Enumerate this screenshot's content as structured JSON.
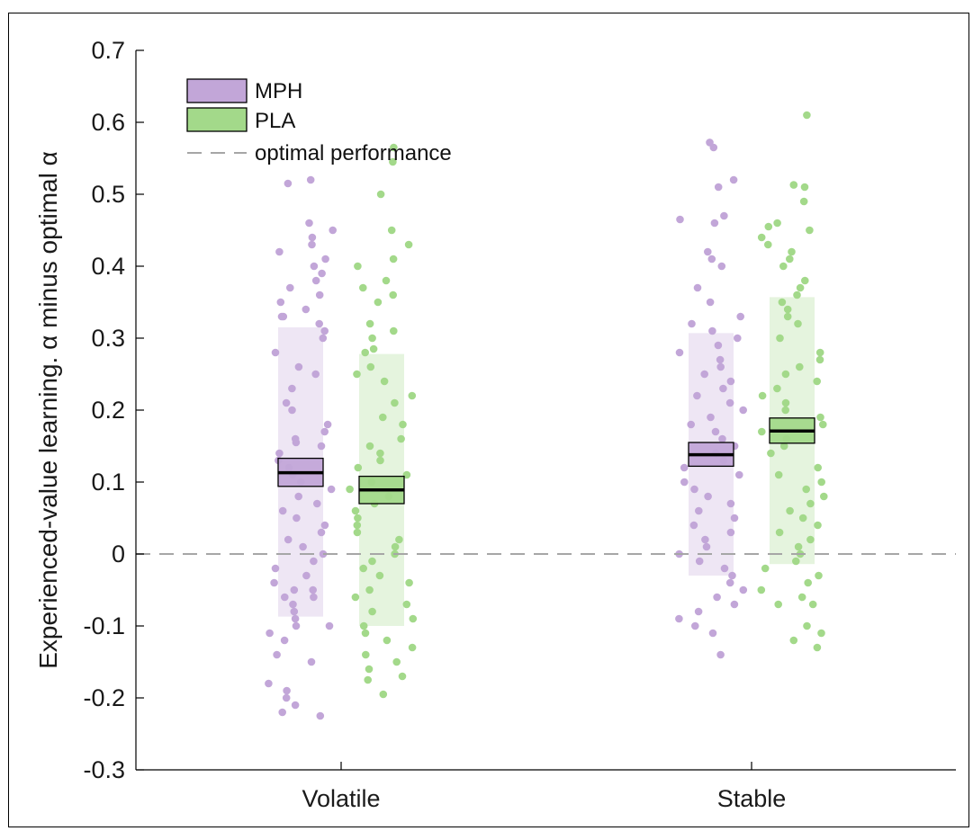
{
  "chart_data": {
    "type": "scatter",
    "subtype": "jittered strip plot with mean and standard-error boxes",
    "ylabel": "Experienced-value learning. α minus optimal α",
    "ylim": [
      -0.3,
      0.7
    ],
    "yticks": [
      "-0.3",
      "-0.2",
      "-0.1",
      "0",
      "0.1",
      "0.2",
      "0.3",
      "0.4",
      "0.5",
      "0.6",
      "0.7"
    ],
    "categories": [
      "Volatile",
      "Stable"
    ],
    "grid": false,
    "legend_position": "top-left",
    "reference_line": {
      "label": "optimal performance",
      "y": 0,
      "style": "dashed",
      "color": "#a6a6a6"
    },
    "series": [
      {
        "name": "MPH",
        "color": "#c2a6d8",
        "groups": [
          {
            "category": "Volatile",
            "mean": 0.113,
            "sem_low": 0.094,
            "sem_high": 0.133,
            "sd_low": -0.087,
            "sd_high": 0.315,
            "points": [
              0.52,
              0.515,
              0.46,
              0.45,
              0.44,
              0.43,
              0.42,
              0.41,
              0.4,
              0.39,
              0.38,
              0.37,
              0.36,
              0.35,
              0.34,
              0.33,
              0.33,
              0.32,
              0.31,
              0.3,
              0.28,
              0.26,
              0.25,
              0.23,
              0.21,
              0.2,
              0.18,
              0.17,
              0.16,
              0.155,
              0.15,
              0.14,
              0.13,
              0.12,
              0.11,
              0.1,
              0.09,
              0.08,
              0.07,
              0.06,
              0.05,
              0.04,
              0.03,
              0.02,
              0.01,
              0.0,
              -0.01,
              -0.02,
              -0.03,
              -0.04,
              -0.05,
              -0.05,
              -0.06,
              -0.06,
              -0.07,
              -0.08,
              -0.09,
              -0.1,
              -0.1,
              -0.11,
              -0.12,
              -0.14,
              -0.15,
              -0.18,
              -0.19,
              -0.2,
              -0.21,
              -0.22,
              -0.225
            ]
          },
          {
            "category": "Stable",
            "mean": 0.138,
            "sem_low": 0.122,
            "sem_high": 0.155,
            "sd_low": -0.03,
            "sd_high": 0.307,
            "points": [
              0.572,
              0.565,
              0.52,
              0.51,
              0.47,
              0.465,
              0.46,
              0.42,
              0.41,
              0.4,
              0.37,
              0.35,
              0.33,
              0.32,
              0.31,
              0.3,
              0.29,
              0.28,
              0.27,
              0.26,
              0.25,
              0.24,
              0.23,
              0.22,
              0.21,
              0.2,
              0.19,
              0.18,
              0.17,
              0.16,
              0.15,
              0.14,
              0.13,
              0.12,
              0.11,
              0.1,
              0.09,
              0.08,
              0.07,
              0.06,
              0.05,
              0.04,
              0.03,
              0.02,
              0.01,
              0.0,
              -0.01,
              -0.02,
              -0.03,
              -0.04,
              -0.05,
              -0.06,
              -0.07,
              -0.08,
              -0.09,
              -0.1,
              -0.11,
              -0.14
            ]
          }
        ]
      },
      {
        "name": "PLA",
        "color": "#a3d98a",
        "groups": [
          {
            "category": "Volatile",
            "mean": 0.089,
            "sem_low": 0.07,
            "sem_high": 0.108,
            "sd_low": -0.1,
            "sd_high": 0.278,
            "points": [
              0.565,
              0.545,
              0.5,
              0.45,
              0.43,
              0.41,
              0.4,
              0.38,
              0.37,
              0.36,
              0.35,
              0.32,
              0.31,
              0.3,
              0.285,
              0.28,
              0.26,
              0.25,
              0.24,
              0.22,
              0.21,
              0.19,
              0.18,
              0.16,
              0.15,
              0.14,
              0.13,
              0.12,
              0.11,
              0.1,
              0.09,
              0.08,
              0.07,
              0.06,
              0.05,
              0.04,
              0.03,
              0.02,
              0.01,
              0.0,
              -0.01,
              -0.02,
              -0.03,
              -0.04,
              -0.05,
              -0.06,
              -0.07,
              -0.08,
              -0.09,
              -0.1,
              -0.11,
              -0.12,
              -0.13,
              -0.14,
              -0.15,
              -0.16,
              -0.17,
              -0.175,
              -0.195
            ]
          },
          {
            "category": "Stable",
            "mean": 0.171,
            "sem_low": 0.154,
            "sem_high": 0.189,
            "sd_low": -0.014,
            "sd_high": 0.357,
            "points": [
              0.61,
              0.513,
              0.51,
              0.49,
              0.46,
              0.455,
              0.45,
              0.44,
              0.43,
              0.42,
              0.41,
              0.4,
              0.38,
              0.37,
              0.36,
              0.35,
              0.34,
              0.33,
              0.32,
              0.3,
              0.28,
              0.27,
              0.26,
              0.25,
              0.24,
              0.23,
              0.22,
              0.21,
              0.2,
              0.19,
              0.18,
              0.17,
              0.16,
              0.15,
              0.14,
              0.12,
              0.11,
              0.1,
              0.09,
              0.08,
              0.07,
              0.06,
              0.05,
              0.04,
              0.03,
              0.02,
              0.01,
              0.0,
              -0.01,
              -0.02,
              -0.03,
              -0.04,
              -0.05,
              -0.06,
              -0.07,
              -0.07,
              -0.1,
              -0.11,
              -0.12,
              -0.13
            ]
          }
        ]
      }
    ]
  }
}
